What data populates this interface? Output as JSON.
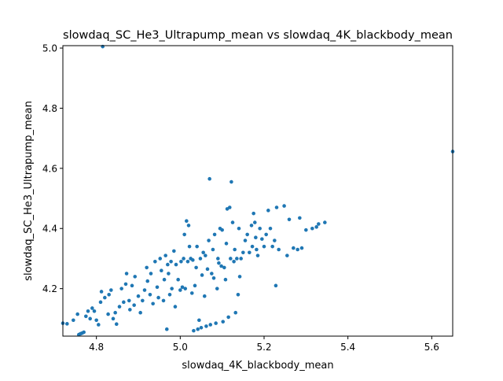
{
  "chart_data": {
    "type": "scatter",
    "title": "slowdaq_SC_He3_Ultrapump_mean vs slowdaq_4K_blackbody_mean",
    "xlabel": "slowdaq_4K_blackbody_mean",
    "ylabel": "slowdaq_SC_He3_Ultrapump_mean",
    "xlim": [
      4.72,
      5.65
    ],
    "ylim": [
      4.042,
      5.008
    ],
    "xticks": [
      "4.8",
      "5.0",
      "5.2",
      "5.4",
      "5.6"
    ],
    "xtick_values": [
      4.8,
      5.0,
      5.2,
      5.4,
      5.6
    ],
    "yticks": [
      "4.2",
      "4.4",
      "4.6",
      "4.8",
      "5.0"
    ],
    "ytick_values": [
      4.2,
      4.4,
      4.6,
      4.8,
      5.0
    ],
    "grid": false,
    "marker_color": "#1f77b4",
    "points": [
      [
        4.815,
        5.005
      ],
      [
        5.65,
        4.656
      ],
      [
        4.72,
        4.085
      ],
      [
        4.73,
        4.083
      ],
      [
        4.745,
        4.095
      ],
      [
        4.755,
        4.115
      ],
      [
        4.758,
        4.047
      ],
      [
        4.762,
        4.05
      ],
      [
        4.766,
        4.052
      ],
      [
        4.77,
        4.055
      ],
      [
        4.775,
        4.108
      ],
      [
        4.78,
        4.125
      ],
      [
        4.785,
        4.1
      ],
      [
        4.79,
        4.135
      ],
      [
        4.795,
        4.125
      ],
      [
        4.8,
        4.095
      ],
      [
        4.805,
        4.08
      ],
      [
        4.81,
        4.155
      ],
      [
        4.812,
        4.19
      ],
      [
        4.82,
        4.17
      ],
      [
        4.828,
        4.115
      ],
      [
        4.83,
        4.18
      ],
      [
        4.835,
        4.195
      ],
      [
        4.84,
        4.1
      ],
      [
        4.845,
        4.12
      ],
      [
        4.848,
        4.082
      ],
      [
        4.855,
        4.14
      ],
      [
        4.86,
        4.2
      ],
      [
        4.865,
        4.155
      ],
      [
        4.87,
        4.215
      ],
      [
        4.872,
        4.25
      ],
      [
        4.878,
        4.16
      ],
      [
        4.88,
        4.13
      ],
      [
        4.885,
        4.21
      ],
      [
        4.89,
        4.145
      ],
      [
        4.892,
        4.24
      ],
      [
        4.9,
        4.175
      ],
      [
        4.905,
        4.12
      ],
      [
        4.91,
        4.16
      ],
      [
        4.915,
        4.195
      ],
      [
        4.92,
        4.27
      ],
      [
        4.922,
        4.225
      ],
      [
        4.928,
        4.18
      ],
      [
        4.93,
        4.25
      ],
      [
        4.935,
        4.15
      ],
      [
        4.94,
        4.29
      ],
      [
        4.945,
        4.205
      ],
      [
        4.948,
        4.17
      ],
      [
        4.952,
        4.3
      ],
      [
        4.955,
        4.26
      ],
      [
        4.96,
        4.16
      ],
      [
        4.962,
        4.23
      ],
      [
        4.965,
        4.31
      ],
      [
        4.968,
        4.065
      ],
      [
        4.97,
        4.28
      ],
      [
        4.972,
        4.25
      ],
      [
        4.975,
        4.18
      ],
      [
        4.978,
        4.29
      ],
      [
        4.98,
        4.2
      ],
      [
        4.985,
        4.325
      ],
      [
        4.988,
        4.14
      ],
      [
        4.99,
        4.28
      ],
      [
        4.995,
        4.23
      ],
      [
        5.0,
        4.195
      ],
      [
        5.002,
        4.29
      ],
      [
        5.005,
        4.205
      ],
      [
        5.008,
        4.3
      ],
      [
        5.01,
        4.38
      ],
      [
        5.012,
        4.2
      ],
      [
        5.015,
        4.425
      ],
      [
        5.018,
        4.29
      ],
      [
        5.02,
        4.41
      ],
      [
        5.022,
        4.34
      ],
      [
        5.025,
        4.3
      ],
      [
        5.028,
        4.185
      ],
      [
        5.03,
        4.295
      ],
      [
        5.032,
        4.06
      ],
      [
        5.035,
        4.21
      ],
      [
        5.038,
        4.27
      ],
      [
        5.04,
        4.34
      ],
      [
        5.042,
        4.065
      ],
      [
        5.045,
        4.095
      ],
      [
        5.048,
        4.3
      ],
      [
        5.05,
        4.07
      ],
      [
        5.052,
        4.245
      ],
      [
        5.055,
        4.32
      ],
      [
        5.058,
        4.175
      ],
      [
        5.06,
        4.31
      ],
      [
        5.062,
        4.075
      ],
      [
        5.065,
        4.265
      ],
      [
        5.068,
        4.36
      ],
      [
        5.07,
        4.565
      ],
      [
        5.072,
        4.08
      ],
      [
        5.075,
        4.25
      ],
      [
        5.078,
        4.33
      ],
      [
        5.08,
        4.235
      ],
      [
        5.082,
        4.38
      ],
      [
        5.085,
        4.085
      ],
      [
        5.088,
        4.2
      ],
      [
        5.09,
        4.3
      ],
      [
        5.092,
        4.285
      ],
      [
        5.095,
        4.4
      ],
      [
        5.098,
        4.275
      ],
      [
        5.1,
        4.395
      ],
      [
        5.102,
        4.09
      ],
      [
        5.105,
        4.27
      ],
      [
        5.108,
        4.23
      ],
      [
        5.11,
        4.35
      ],
      [
        5.112,
        4.465
      ],
      [
        5.115,
        4.105
      ],
      [
        5.118,
        4.47
      ],
      [
        5.12,
        4.3
      ],
      [
        5.122,
        4.555
      ],
      [
        5.125,
        4.42
      ],
      [
        5.128,
        4.29
      ],
      [
        5.13,
        4.33
      ],
      [
        5.132,
        4.12
      ],
      [
        5.135,
        4.3
      ],
      [
        5.138,
        4.18
      ],
      [
        5.14,
        4.4
      ],
      [
        5.142,
        4.24
      ],
      [
        5.145,
        4.3
      ],
      [
        5.15,
        4.32
      ],
      [
        5.155,
        4.36
      ],
      [
        5.16,
        4.38
      ],
      [
        5.165,
        4.32
      ],
      [
        5.17,
        4.41
      ],
      [
        5.172,
        4.34
      ],
      [
        5.175,
        4.45
      ],
      [
        5.178,
        4.42
      ],
      [
        5.18,
        4.37
      ],
      [
        5.182,
        4.33
      ],
      [
        5.185,
        4.31
      ],
      [
        5.19,
        4.4
      ],
      [
        5.195,
        4.365
      ],
      [
        5.2,
        4.34
      ],
      [
        5.205,
        4.38
      ],
      [
        5.21,
        4.46
      ],
      [
        5.215,
        4.4
      ],
      [
        5.22,
        4.34
      ],
      [
        5.225,
        4.36
      ],
      [
        5.228,
        4.21
      ],
      [
        5.23,
        4.47
      ],
      [
        5.235,
        4.33
      ],
      [
        5.248,
        4.475
      ],
      [
        5.255,
        4.31
      ],
      [
        5.26,
        4.43
      ],
      [
        5.27,
        4.335
      ],
      [
        5.28,
        4.33
      ],
      [
        5.285,
        4.435
      ],
      [
        5.29,
        4.335
      ],
      [
        5.3,
        4.395
      ],
      [
        5.315,
        4.4
      ],
      [
        5.325,
        4.405
      ],
      [
        5.345,
        4.42
      ],
      [
        5.33,
        4.415
      ]
    ]
  }
}
